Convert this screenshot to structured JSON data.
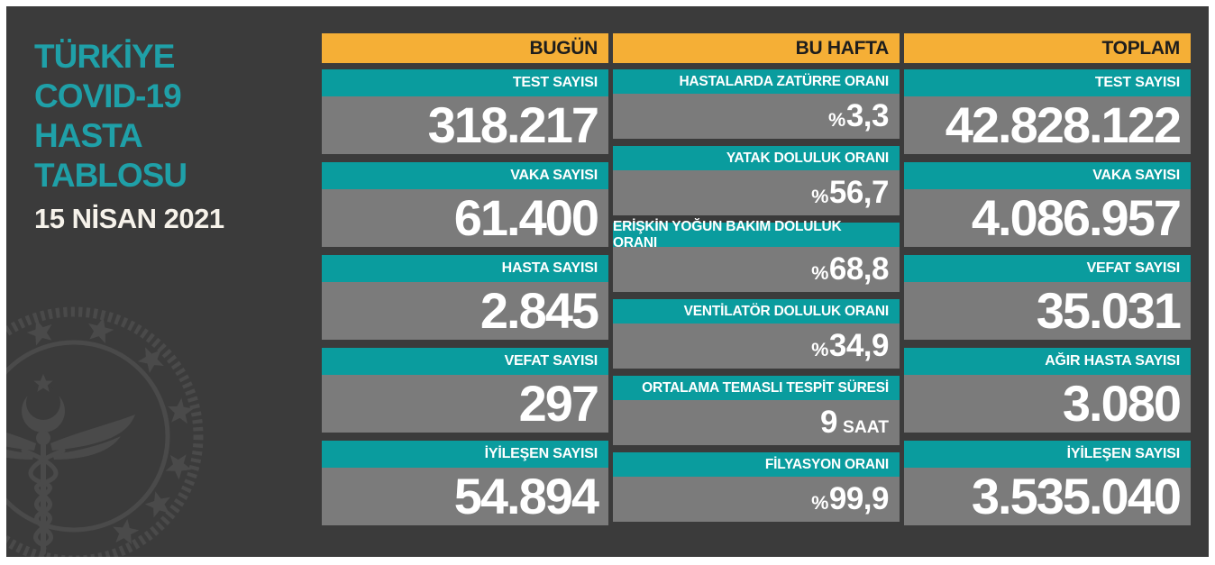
{
  "title": {
    "lines": [
      "TÜRKİYE",
      "COVID-19",
      "HASTA",
      "TABLOSU"
    ],
    "date": "15 NİSAN 2021"
  },
  "columns": [
    {
      "header": "BUGÜN",
      "rows": [
        {
          "label": "TEST SAYISI",
          "main": "318.217"
        },
        {
          "label": "VAKA SAYISI",
          "main": "61.400"
        },
        {
          "label": "HASTA SAYISI",
          "main": "2.845"
        },
        {
          "label": "VEFAT SAYISI",
          "main": "297"
        },
        {
          "label": "İYİLEŞEN SAYISI",
          "main": "54.894"
        }
      ]
    },
    {
      "header": "BU HAFTA",
      "rows": [
        {
          "label": "HASTALARDA ZATÜRRE ORANI",
          "prefix": "%",
          "main": "3,3"
        },
        {
          "label": "YATAK DOLULUK ORANI",
          "prefix": "%",
          "main": "56,7"
        },
        {
          "label": "ERİŞKİN YOĞUN BAKIM DOLULUK ORANI",
          "prefix": "%",
          "main": "68,8"
        },
        {
          "label": "VENTİLATÖR DOLULUK ORANI",
          "prefix": "%",
          "main": "34,9"
        },
        {
          "label": "ORTALAMA TEMASLI TESPİT SÜRESİ",
          "main": "9",
          "suffix": "SAAT"
        },
        {
          "label": "FİLYASYON ORANI",
          "prefix": "%",
          "main": "99,9"
        }
      ]
    },
    {
      "header": "TOPLAM",
      "rows": [
        {
          "label": "TEST SAYISI",
          "main": "42.828.122"
        },
        {
          "label": "VAKA SAYISI",
          "main": "4.086.957"
        },
        {
          "label": "VEFAT SAYISI",
          "main": "35.031"
        },
        {
          "label": "AĞIR HASTA SAYISI",
          "main": "3.080"
        },
        {
          "label": "İYİLEŞEN SAYISI",
          "main": "3.535.040"
        }
      ]
    }
  ],
  "colors": {
    "panel": "#3B3B3B",
    "orange": "#F5AF36",
    "teal": "#0A9C9E",
    "teal_title": "#1FA0A8",
    "gray": "#7B7B7B",
    "header_text": "#1D1D1D",
    "date_text": "#F6F2EA",
    "emblem": "#4A4A4A",
    "white": "#FFFFFF"
  },
  "logo": {
    "name": "tc-saglik-bakanligi-emblem"
  },
  "chart_data": [
    {
      "type": "table",
      "title": "BUGÜN",
      "rows": [
        [
          "TEST SAYISI",
          "318.217"
        ],
        [
          "VAKA SAYISI",
          "61.400"
        ],
        [
          "HASTA SAYISI",
          "2.845"
        ],
        [
          "VEFAT SAYISI",
          "297"
        ],
        [
          "İYİLEŞEN SAYISI",
          "54.894"
        ]
      ]
    },
    {
      "type": "table",
      "title": "BU HAFTA",
      "rows": [
        [
          "HASTALARDA ZATÜRRE ORANI",
          "%3,3"
        ],
        [
          "YATAK DOLULUK ORANI",
          "%56,7"
        ],
        [
          "ERİŞKİN YOĞUN BAKIM DOLULUK ORANI",
          "%68,8"
        ],
        [
          "VENTİLATÖR DOLULUK ORANI",
          "%34,9"
        ],
        [
          "ORTALAMA TEMASLI TESPİT SÜRESİ",
          "9 SAAT"
        ],
        [
          "FİLYASYON ORANI",
          "%99,9"
        ]
      ]
    },
    {
      "type": "table",
      "title": "TOPLAM",
      "rows": [
        [
          "TEST SAYISI",
          "42.828.122"
        ],
        [
          "VAKA SAYISI",
          "4.086.957"
        ],
        [
          "VEFAT SAYISI",
          "35.031"
        ],
        [
          "AĞIR HASTA SAYISI",
          "3.080"
        ],
        [
          "İYİLEŞEN SAYISI",
          "3.535.040"
        ]
      ]
    }
  ]
}
